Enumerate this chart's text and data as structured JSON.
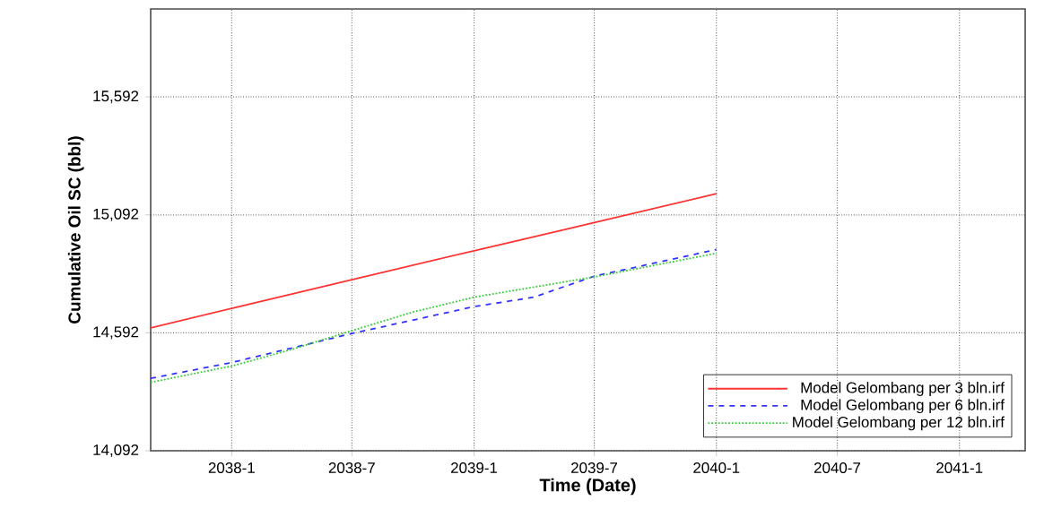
{
  "chart_data": {
    "type": "line",
    "xlabel": "Time (Date)",
    "ylabel": "Cumulative Oil SC (bbl)",
    "xlim": [
      "2037-09-01",
      "2041-04-10"
    ],
    "ylim": [
      14092,
      15965
    ],
    "xticks": [
      {
        "value": "2038-01-01",
        "label": "2038-1"
      },
      {
        "value": "2038-07-01",
        "label": "2038-7"
      },
      {
        "value": "2039-01-01",
        "label": "2039-1"
      },
      {
        "value": "2039-07-01",
        "label": "2039-7"
      },
      {
        "value": "2040-01-01",
        "label": "2040-1"
      },
      {
        "value": "2040-07-01",
        "label": "2040-7"
      },
      {
        "value": "2041-01-01",
        "label": "2041-1"
      }
    ],
    "yticks": [
      {
        "value": 14092,
        "label": "14,092"
      },
      {
        "value": 14592,
        "label": "14,592"
      },
      {
        "value": 15092,
        "label": "15,092"
      },
      {
        "value": 15592,
        "label": "15,592"
      }
    ],
    "grid": true,
    "legend": "bottom right",
    "series": [
      {
        "name": "Model Gelombang per 3 bln.irf",
        "color": "#ff3333",
        "line_style": "solid",
        "x": [
          "2037-09-01",
          "2038-01-01",
          "2038-07-01",
          "2039-01-01",
          "2039-07-01",
          "2040-01-01"
        ],
        "values": [
          14613,
          14696,
          14817,
          14940,
          15059,
          15182
        ]
      },
      {
        "name": "Model Gelombang per 6 bln.irf",
        "color": "#3333ff",
        "line_style": "dashed",
        "x": [
          "2037-09-01",
          "2038-01-01",
          "2038-07-01",
          "2039-01-01",
          "2039-04-01",
          "2039-07-01",
          "2040-01-01"
        ],
        "values": [
          14399,
          14466,
          14589,
          14703,
          14743,
          14832,
          14945
        ]
      },
      {
        "name": "Model Gelombang per 12 bln.irf",
        "color": "#33cc33",
        "line_style": "dotted",
        "x": [
          "2037-09-01",
          "2038-01-01",
          "2038-04-01",
          "2038-07-01",
          "2038-10-01",
          "2039-01-01",
          "2039-07-01",
          "2040-01-01"
        ],
        "values": [
          14382,
          14451,
          14521,
          14601,
          14680,
          14743,
          14829,
          14929
        ]
      }
    ]
  }
}
